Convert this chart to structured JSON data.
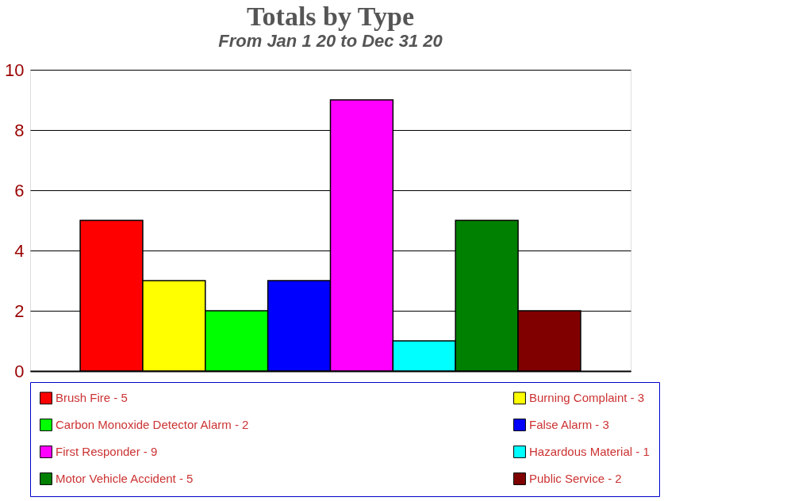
{
  "chart_data": {
    "type": "bar",
    "title": "Totals by Type",
    "subtitle": "From Jan 1 20 to Dec 31 20",
    "categories": [
      null
    ],
    "series": [
      {
        "name": "Brush Fire - 5",
        "color": "#ff0000",
        "values": [
          5
        ]
      },
      {
        "name": "Burning Complaint - 3",
        "color": "#ffff00",
        "values": [
          3
        ]
      },
      {
        "name": "Carbon Monoxide Detector Alarm - 2",
        "color": "#00ff00",
        "values": [
          2
        ]
      },
      {
        "name": "False Alarm - 3",
        "color": "#0000ff",
        "values": [
          3
        ]
      },
      {
        "name": "First Responder - 9",
        "color": "#ff00ff",
        "values": [
          9
        ]
      },
      {
        "name": "Hazardous Material - 1",
        "color": "#00ffff",
        "values": [
          1
        ]
      },
      {
        "name": "Motor Vehicle Accident - 5",
        "color": "#008000",
        "values": [
          5
        ]
      },
      {
        "name": "Public Service - 2",
        "color": "#800000",
        "values": [
          2
        ]
      }
    ],
    "ylim": [
      0,
      10
    ],
    "yticks": [
      0,
      2,
      4,
      6,
      8,
      10
    ],
    "grid": "y",
    "legend": "bottom",
    "tick_labels": "y"
  }
}
